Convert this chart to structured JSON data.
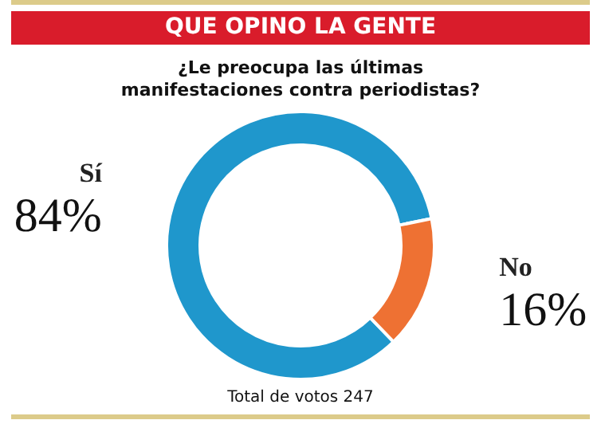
{
  "chart_data": {
    "type": "donut",
    "title": "QUE OPINO LA GENTE",
    "subtitle": "¿Le preocupa las últimas manifestaciones contra periodistas?",
    "categories": [
      "Sí",
      "No"
    ],
    "values": [
      84,
      16
    ],
    "colors": [
      "#1f97cc",
      "#ee7133"
    ],
    "value_labels": [
      "84%",
      "16%"
    ],
    "annotations": [
      "Total de votos 247"
    ],
    "legend": false
  }
}
